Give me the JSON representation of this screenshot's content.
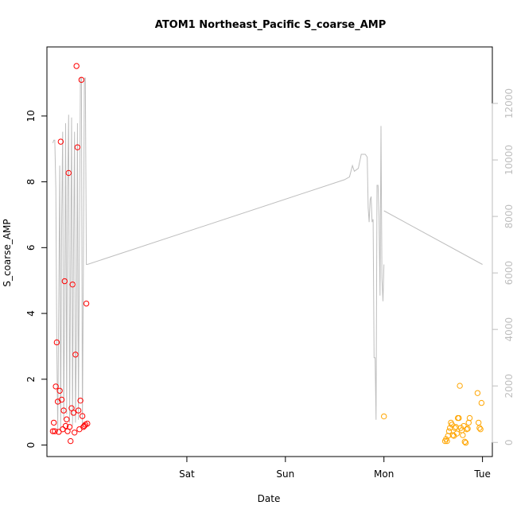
{
  "chart_data": {
    "type": "scatter",
    "title": "ATOM1 Northeast_Pacific S_coarse_AMP",
    "xlabel": "Date",
    "ylabel": "S_coarse_AMP",
    "x_ticks": [
      {
        "label": "Sat",
        "x": 1.0
      },
      {
        "label": "Sun",
        "x": 2.0
      },
      {
        "label": "Mon",
        "x": 3.0
      },
      {
        "label": "Tue",
        "x": 4.0
      }
    ],
    "xlim": [
      -0.42,
      4.1
    ],
    "ylim": [
      -0.35,
      12.1
    ],
    "y_ticks": [
      0,
      2,
      4,
      6,
      8,
      10
    ],
    "y2lim": [
      -500,
      14000
    ],
    "y2_ticks": [
      0,
      2000,
      4000,
      6000,
      8000,
      10000,
      12000
    ],
    "grid": false,
    "colors": {
      "series_a": "#ff0000",
      "series_b": "#ffa500",
      "right_axis": "#bebebe",
      "line": "#bebebe"
    },
    "series": [
      {
        "color": "#ff0000",
        "points": [
          [
            -0.36,
            0.42
          ],
          [
            -0.35,
            0.68
          ],
          [
            -0.34,
            0.42
          ],
          [
            -0.33,
            1.78
          ],
          [
            -0.32,
            3.12
          ],
          [
            -0.31,
            1.32
          ],
          [
            -0.3,
            0.4
          ],
          [
            -0.29,
            1.65
          ],
          [
            -0.28,
            9.22
          ],
          [
            -0.27,
            1.38
          ],
          [
            -0.26,
            0.48
          ],
          [
            -0.25,
            1.05
          ],
          [
            -0.24,
            4.98
          ],
          [
            -0.23,
            0.58
          ],
          [
            -0.22,
            0.78
          ],
          [
            -0.21,
            0.42
          ],
          [
            -0.2,
            8.27
          ],
          [
            -0.19,
            0.55
          ],
          [
            -0.18,
            0.12
          ],
          [
            -0.17,
            1.12
          ],
          [
            -0.16,
            4.88
          ],
          [
            -0.15,
            0.98
          ],
          [
            -0.14,
            0.38
          ],
          [
            -0.13,
            2.75
          ],
          [
            -0.12,
            11.52
          ],
          [
            -0.11,
            9.05
          ],
          [
            -0.1,
            1.05
          ],
          [
            -0.09,
            0.48
          ],
          [
            -0.08,
            1.35
          ],
          [
            -0.07,
            11.1
          ],
          [
            -0.06,
            0.88
          ],
          [
            -0.05,
            0.55
          ],
          [
            -0.04,
            0.58
          ],
          [
            -0.03,
            0.62
          ],
          [
            -0.02,
            4.3
          ],
          [
            -0.01,
            0.65
          ]
        ]
      },
      {
        "color": "#ffa500",
        "points": [
          [
            3.0,
            0.87
          ],
          [
            3.62,
            0.12
          ],
          [
            3.63,
            0.18
          ],
          [
            3.64,
            0.12
          ],
          [
            3.65,
            0.28
          ],
          [
            3.66,
            0.42
          ],
          [
            3.67,
            0.52
          ],
          [
            3.68,
            0.68
          ],
          [
            3.69,
            0.62
          ],
          [
            3.7,
            0.3
          ],
          [
            3.71,
            0.28
          ],
          [
            3.72,
            0.52
          ],
          [
            3.73,
            0.55
          ],
          [
            3.74,
            0.35
          ],
          [
            3.75,
            0.82
          ],
          [
            3.76,
            0.82
          ],
          [
            3.77,
            1.8
          ],
          [
            3.78,
            0.52
          ],
          [
            3.79,
            0.45
          ],
          [
            3.8,
            0.3
          ],
          [
            3.81,
            0.58
          ],
          [
            3.82,
            0.1
          ],
          [
            3.83,
            0.07
          ],
          [
            3.84,
            0.48
          ],
          [
            3.85,
            0.5
          ],
          [
            3.86,
            0.68
          ],
          [
            3.87,
            0.82
          ],
          [
            3.95,
            1.58
          ],
          [
            3.96,
            0.68
          ],
          [
            3.97,
            0.52
          ],
          [
            3.98,
            0.48
          ],
          [
            3.99,
            1.28
          ]
        ]
      }
    ],
    "line_series": {
      "axis": "right",
      "color": "#bebebe",
      "segments": [
        [
          [
            -0.36,
            10600
          ],
          [
            -0.35,
            10700
          ],
          [
            -0.34,
            10700
          ],
          [
            -0.33,
            9000
          ],
          [
            -0.32,
            3500
          ],
          [
            -0.31,
            400
          ],
          [
            -0.3,
            5000
          ],
          [
            -0.29,
            9800
          ],
          [
            -0.28,
            400
          ],
          [
            -0.27,
            8000
          ],
          [
            -0.26,
            11000
          ],
          [
            -0.25,
            800
          ],
          [
            -0.24,
            5000
          ],
          [
            -0.23,
            11300
          ],
          [
            -0.22,
            1000
          ],
          [
            -0.21,
            9000
          ],
          [
            -0.2,
            11600
          ],
          [
            -0.19,
            700
          ],
          [
            -0.18,
            6000
          ],
          [
            -0.17,
            11500
          ],
          [
            -0.16,
            600
          ],
          [
            -0.15,
            7000
          ],
          [
            -0.14,
            11000
          ],
          [
            -0.13,
            700
          ],
          [
            -0.12,
            4000
          ],
          [
            -0.11,
            11300
          ],
          [
            -0.1,
            800
          ],
          [
            -0.09,
            7000
          ],
          [
            -0.08,
            12900
          ],
          [
            -0.07,
            12900
          ],
          [
            -0.06,
            600
          ],
          [
            -0.05,
            6000
          ],
          [
            -0.04,
            12900
          ],
          [
            -0.03,
            12900
          ],
          [
            -0.02,
            6300
          ],
          [
            -0.01,
            6300
          ],
          [
            2.6,
            9300
          ],
          [
            2.65,
            9400
          ],
          [
            2.68,
            9800
          ],
          [
            2.7,
            9600
          ],
          [
            2.74,
            9700
          ],
          [
            2.77,
            10200
          ],
          [
            2.81,
            10200
          ],
          [
            2.83,
            10100
          ],
          [
            2.84,
            8300
          ],
          [
            2.85,
            7800
          ],
          [
            2.86,
            8600
          ],
          [
            2.87,
            8700
          ],
          [
            2.88,
            7800
          ],
          [
            2.89,
            7900
          ],
          [
            2.9,
            3000
          ],
          [
            2.91,
            3000
          ],
          [
            2.92,
            800
          ],
          [
            2.93,
            9100
          ],
          [
            2.94,
            9100
          ],
          [
            2.95,
            8000
          ],
          [
            2.96,
            5200
          ],
          [
            2.97,
            11200
          ],
          [
            2.98,
            5800
          ],
          [
            2.99,
            5000
          ],
          [
            3.0,
            6300
          ]
        ],
        [
          [
            3.0,
            8200
          ],
          [
            4.0,
            6300
          ]
        ]
      ]
    }
  }
}
